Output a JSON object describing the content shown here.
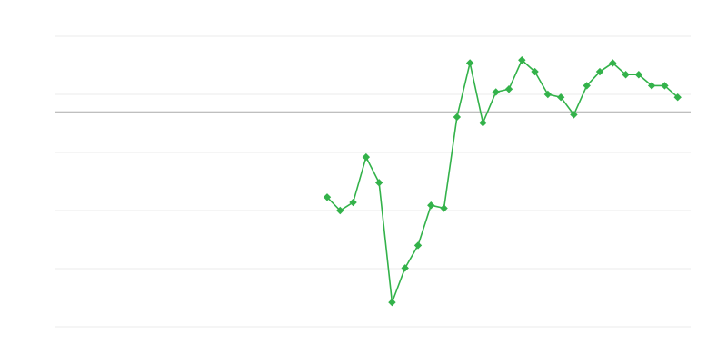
{
  "chart_data": {
    "type": "line",
    "title": "",
    "xlabel": "",
    "ylabel": "",
    "xlim": [
      0,
      49
    ],
    "ylim": [
      -3.7,
      1.3
    ],
    "grid": true,
    "gridlines_y": [
      1.3,
      0.3,
      -0.7,
      -1.7,
      -2.7,
      -3.7
    ],
    "baseline_y": 0,
    "legend": "none",
    "series": [
      {
        "color": "#33b24a",
        "marker": "diamond",
        "x": [
          21,
          22,
          23,
          24,
          25,
          26,
          27,
          28,
          29,
          30,
          31,
          32,
          33,
          34,
          35,
          36,
          37,
          38,
          39,
          40,
          41,
          42,
          43,
          44,
          45,
          46,
          47,
          48
        ],
        "y": [
          -1.47,
          -1.7,
          -1.56,
          -0.78,
          -1.22,
          -3.28,
          -2.69,
          -2.3,
          -1.61,
          -1.66,
          -0.09,
          0.84,
          -0.19,
          0.34,
          0.39,
          0.89,
          0.69,
          0.3,
          0.25,
          -0.05,
          0.45,
          0.69,
          0.84,
          0.64,
          0.64,
          0.45,
          0.45,
          0.25
        ]
      }
    ],
    "colors": {
      "grid": "#ebebeb",
      "baseline": "#aaaaaa",
      "series": "#33b24a"
    }
  }
}
